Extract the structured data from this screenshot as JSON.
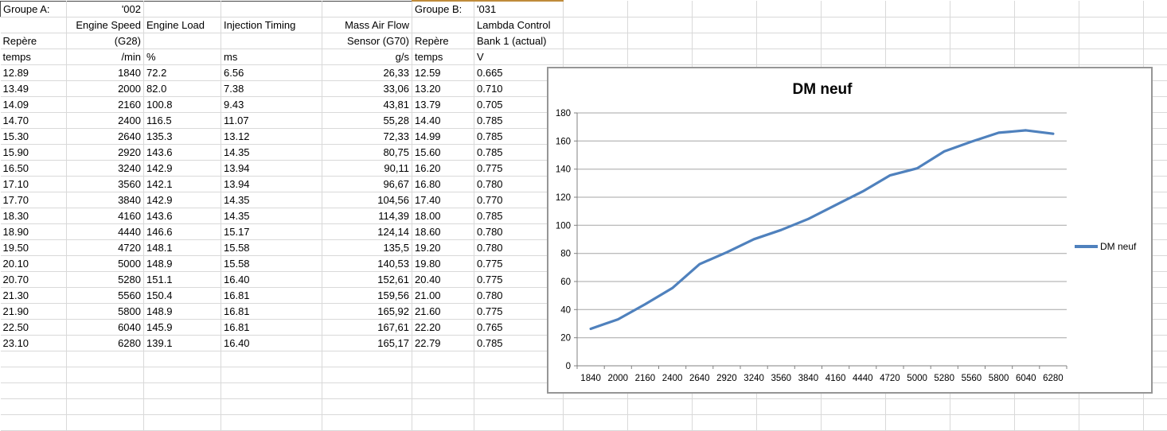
{
  "sheet": {
    "group_a_label": "Groupe A:",
    "group_a_value": "'002",
    "group_b_label": "Groupe B:",
    "group_b_value": "'031",
    "header_rows": [
      [
        "Groupe A:",
        "'002",
        "",
        "",
        "",
        "Groupe B:",
        "'031"
      ],
      [
        "",
        "Engine Speed",
        "Engine Load",
        "Injection Timing",
        "Mass Air Flow",
        "",
        "Lambda Control"
      ],
      [
        "Repère",
        "(G28)",
        "",
        "",
        "Sensor (G70)",
        "Repère",
        "Bank 1 (actual)"
      ],
      [
        "temps",
        "/min",
        "%",
        "ms",
        "g/s",
        "temps",
        "V"
      ]
    ],
    "column_names": [
      "repere-temps-a",
      "engine-speed",
      "engine-load",
      "injection-timing",
      "mass-air-flow",
      "repere-temps-b",
      "lambda-control"
    ],
    "column_aligns": [
      "left",
      "right",
      "left",
      "left",
      "right",
      "left",
      "left"
    ],
    "rows": [
      [
        "12.89",
        "1840",
        "72.2",
        "6.56",
        "26,33",
        "12.59",
        "0.665"
      ],
      [
        "13.49",
        "2000",
        "82.0",
        "7.38",
        "33,06",
        "13.20",
        "0.710"
      ],
      [
        "14.09",
        "2160",
        "100.8",
        "9.43",
        "43,81",
        "13.79",
        "0.705"
      ],
      [
        "14.70",
        "2400",
        "116.5",
        "11.07",
        "55,28",
        "14.40",
        "0.785"
      ],
      [
        "15.30",
        "2640",
        "135.3",
        "13.12",
        "72,33",
        "14.99",
        "0.785"
      ],
      [
        "15.90",
        "2920",
        "143.6",
        "14.35",
        "80,75",
        "15.60",
        "0.785"
      ],
      [
        "16.50",
        "3240",
        "142.9",
        "13.94",
        "90,11",
        "16.20",
        "0.775"
      ],
      [
        "17.10",
        "3560",
        "142.1",
        "13.94",
        "96,67",
        "16.80",
        "0.780"
      ],
      [
        "17.70",
        "3840",
        "142.9",
        "14.35",
        "104,56",
        "17.40",
        "0.770"
      ],
      [
        "18.30",
        "4160",
        "143.6",
        "14.35",
        "114,39",
        "18.00",
        "0.785"
      ],
      [
        "18.90",
        "4440",
        "146.6",
        "15.17",
        "124,14",
        "18.60",
        "0.780"
      ],
      [
        "19.50",
        "4720",
        "148.1",
        "15.58",
        "135,5",
        "19.20",
        "0.780"
      ],
      [
        "20.10",
        "5000",
        "148.9",
        "15.58",
        "140,53",
        "19.80",
        "0.775"
      ],
      [
        "20.70",
        "5280",
        "151.1",
        "16.40",
        "152,61",
        "20.40",
        "0.775"
      ],
      [
        "21.30",
        "5560",
        "150.4",
        "16.81",
        "159,56",
        "21.00",
        "0.780"
      ],
      [
        "21.90",
        "5800",
        "148.9",
        "16.81",
        "165,92",
        "21.60",
        "0.775"
      ],
      [
        "22.50",
        "6040",
        "145.9",
        "16.81",
        "167,61",
        "22.20",
        "0.765"
      ],
      [
        "23.10",
        "6280",
        "139.1",
        "16.40",
        "165,17",
        "22.79",
        "0.785"
      ]
    ]
  },
  "chart_data": {
    "type": "line",
    "title": "DM neuf",
    "categories": [
      1840,
      2000,
      2160,
      2400,
      2640,
      2920,
      3240,
      3560,
      3840,
      4160,
      4440,
      4720,
      5000,
      5280,
      5560,
      5800,
      6040,
      6280
    ],
    "series": [
      {
        "name": "DM neuf",
        "values": [
          26.33,
          33.06,
          43.81,
          55.28,
          72.33,
          80.75,
          90.11,
          96.67,
          104.56,
          114.39,
          124.14,
          135.5,
          140.53,
          152.61,
          159.56,
          165.92,
          167.61,
          165.17
        ]
      }
    ],
    "xlabel": "",
    "ylabel": "",
    "ylim": [
      0,
      180
    ],
    "ytick_step": 20,
    "grid": true,
    "legend_position": "right",
    "line_color": "#4F81BD"
  },
  "colors": {
    "grid_line": "#d9d9d9",
    "header_border": "#474747",
    "accent_border": "#bf8b3a",
    "chart_border": "#969696",
    "chart_gridline": "#a6a6a6",
    "chart_axis": "#808080",
    "series_line": "#4F81BD"
  }
}
